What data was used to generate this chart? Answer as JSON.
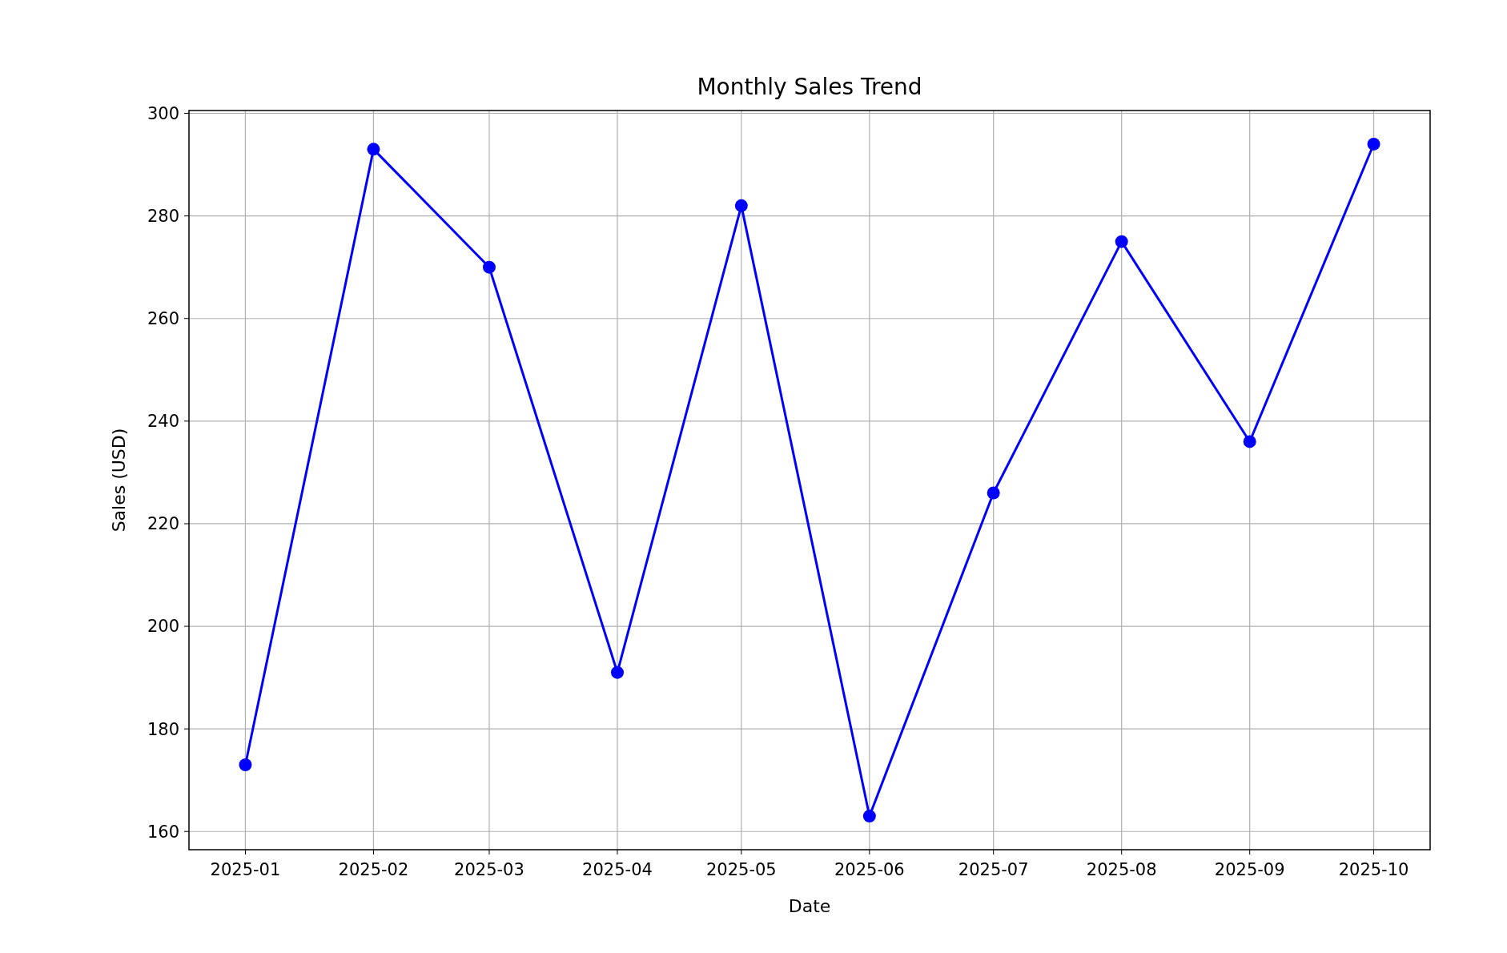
{
  "chart_data": {
    "type": "line",
    "title": "Monthly Sales Trend",
    "xlabel": "Date",
    "ylabel": "Sales (USD)",
    "x": [
      "2025-01",
      "2025-02",
      "2025-03",
      "2025-04",
      "2025-05",
      "2025-06",
      "2025-07",
      "2025-08",
      "2025-09",
      "2025-10"
    ],
    "series": [
      {
        "color": "#0000ff",
        "values": [
          173,
          293,
          270,
          191,
          282,
          163,
          226,
          275,
          236,
          294
        ]
      }
    ],
    "xlim": [
      "2024-12-18T08:24",
      "2025-10-14T15:36"
    ],
    "xticks": [
      "2025-01",
      "2025-02",
      "2025-03",
      "2025-04",
      "2025-05",
      "2025-06",
      "2025-07",
      "2025-08",
      "2025-09",
      "2025-10"
    ],
    "ylim": [
      156.45,
      300.55
    ],
    "yticks": [
      160,
      180,
      200,
      220,
      240,
      260,
      280,
      300
    ],
    "grid": true,
    "marker": "circle",
    "line_style": "solid"
  }
}
